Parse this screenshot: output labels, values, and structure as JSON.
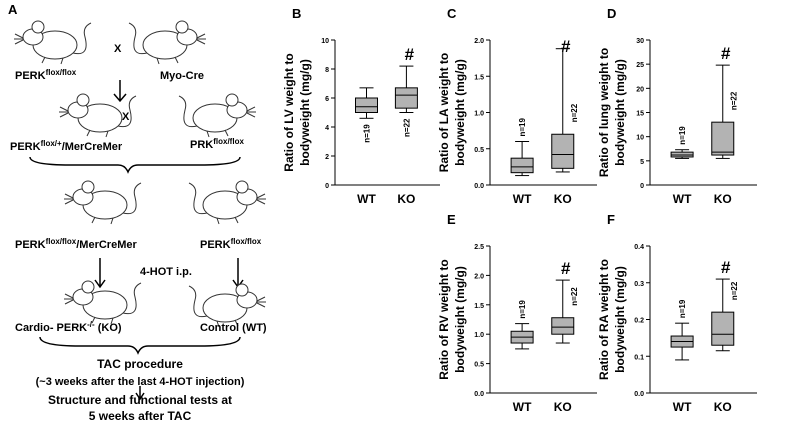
{
  "panel_a": {
    "label": "A",
    "nodes": [
      {
        "text": "PERK",
        "sup": "flox/flox"
      },
      {
        "text": "X"
      },
      {
        "text": "Myo-Cre"
      },
      {
        "text": "X"
      },
      {
        "text": "PERK",
        "sup": "flox/+",
        "suffix": "/MerCreMer"
      },
      {
        "text": "PRK",
        "sup": "flox/flox"
      },
      {
        "text": "PERK",
        "sup": "flox/flox",
        "suffix": "/MerCreMer"
      },
      {
        "text": "PERK",
        "sup": "flox/flox"
      },
      {
        "text": "4-HOT  i.p."
      },
      {
        "text": "Cardio- PERK",
        "sup": "-/-",
        "suffix": " (KO)"
      },
      {
        "text": "Control (WT)"
      },
      {
        "text": "TAC procedure"
      },
      {
        "text": "(~3 weeks after the last 4-HOT  injection)"
      },
      {
        "text": "Structure and functional tests at"
      },
      {
        "text": "5 weeks after TAC"
      }
    ]
  },
  "chart_data": [
    {
      "type": "box",
      "panel": "B",
      "ylabel": [
        "Ratio of LV weight to",
        "bodyweight (mg/g)"
      ],
      "categories": [
        "WT",
        "KO"
      ],
      "color": "#b3b3b3",
      "ylim": [
        0,
        10
      ],
      "yticks": [
        0,
        2,
        4,
        6,
        8,
        10
      ],
      "n_labels": [
        "n=19",
        "n=22"
      ],
      "n_label_position": "below",
      "annotation": "#",
      "boxes": [
        {
          "min": 4.6,
          "q1": 5.0,
          "median": 5.4,
          "q3": 6.0,
          "max": 6.7
        },
        {
          "min": 5.0,
          "q1": 5.3,
          "median": 6.2,
          "q3": 6.7,
          "max": 8.2
        }
      ]
    },
    {
      "type": "box",
      "panel": "C",
      "ylabel": [
        "Ratio of LA weight to",
        "bodyweight (mg/g)"
      ],
      "categories": [
        "WT",
        "KO"
      ],
      "color": "#b3b3b3",
      "ylim": [
        0,
        2
      ],
      "yticks": [
        {
          "value": 0,
          "label": "0.0"
        },
        0.5,
        {
          "value": 1,
          "label": "1.0"
        },
        1.5,
        {
          "value": 2,
          "label": "2.0"
        }
      ],
      "n_labels": [
        "n=19",
        "n=22"
      ],
      "n_label_position": "above",
      "annotation": "#",
      "boxes": [
        {
          "min": 0.13,
          "q1": 0.17,
          "median": 0.25,
          "q3": 0.37,
          "max": 0.6
        },
        {
          "min": 0.18,
          "q1": 0.23,
          "median": 0.42,
          "q3": 0.7,
          "max": 1.88
        }
      ]
    },
    {
      "type": "box",
      "panel": "D",
      "ylabel": [
        "Ratio of lung weight to",
        "bodyweight (mg/g)"
      ],
      "categories": [
        "WT",
        "KO"
      ],
      "color": "#b3b3b3",
      "ylim": [
        0,
        30
      ],
      "yticks": [
        0,
        5,
        10,
        15,
        20,
        25,
        30
      ],
      "n_labels": [
        "n=19",
        "n=22"
      ],
      "n_label_position": "above",
      "annotation": "#",
      "boxes": [
        {
          "min": 5.5,
          "q1": 5.8,
          "median": 6.2,
          "q3": 6.8,
          "max": 7.3
        },
        {
          "min": 5.5,
          "q1": 6.2,
          "median": 6.8,
          "q3": 13,
          "max": 24.8
        }
      ]
    },
    {
      "type": "box",
      "panel": "E",
      "ylabel": [
        "Ratio of RV weight to",
        "bodyweight (mg/g)"
      ],
      "categories": [
        "WT",
        "KO"
      ],
      "color": "#b3b3b3",
      "ylim": [
        0,
        2.5
      ],
      "yticks": [
        {
          "value": 0,
          "label": "0.0"
        },
        0.5,
        {
          "value": 1,
          "label": "1.0"
        },
        1.5,
        {
          "value": 2,
          "label": "2.0"
        },
        2.5
      ],
      "n_labels": [
        "n=19",
        "n=22"
      ],
      "n_label_position": "above",
      "annotation": "#",
      "boxes": [
        {
          "min": 0.75,
          "q1": 0.85,
          "median": 0.95,
          "q3": 1.05,
          "max": 1.18
        },
        {
          "min": 0.85,
          "q1": 1.0,
          "median": 1.12,
          "q3": 1.28,
          "max": 1.92
        }
      ]
    },
    {
      "type": "box",
      "panel": "F",
      "ylabel": [
        "Ratio of RA weight to",
        "bodyweight (mg/g)"
      ],
      "categories": [
        "WT",
        "KO"
      ],
      "color": "#b3b3b3",
      "ylim": [
        0,
        0.4
      ],
      "yticks": [
        {
          "value": 0,
          "label": "0.0"
        },
        0.1,
        0.2,
        0.3,
        0.4
      ],
      "n_labels": [
        "n=19",
        "n=22"
      ],
      "n_label_position": "above",
      "annotation": "#",
      "boxes": [
        {
          "min": 0.09,
          "q1": 0.125,
          "median": 0.14,
          "q3": 0.155,
          "max": 0.19
        },
        {
          "min": 0.115,
          "q1": 0.13,
          "median": 0.16,
          "q3": 0.22,
          "max": 0.31
        }
      ]
    }
  ]
}
